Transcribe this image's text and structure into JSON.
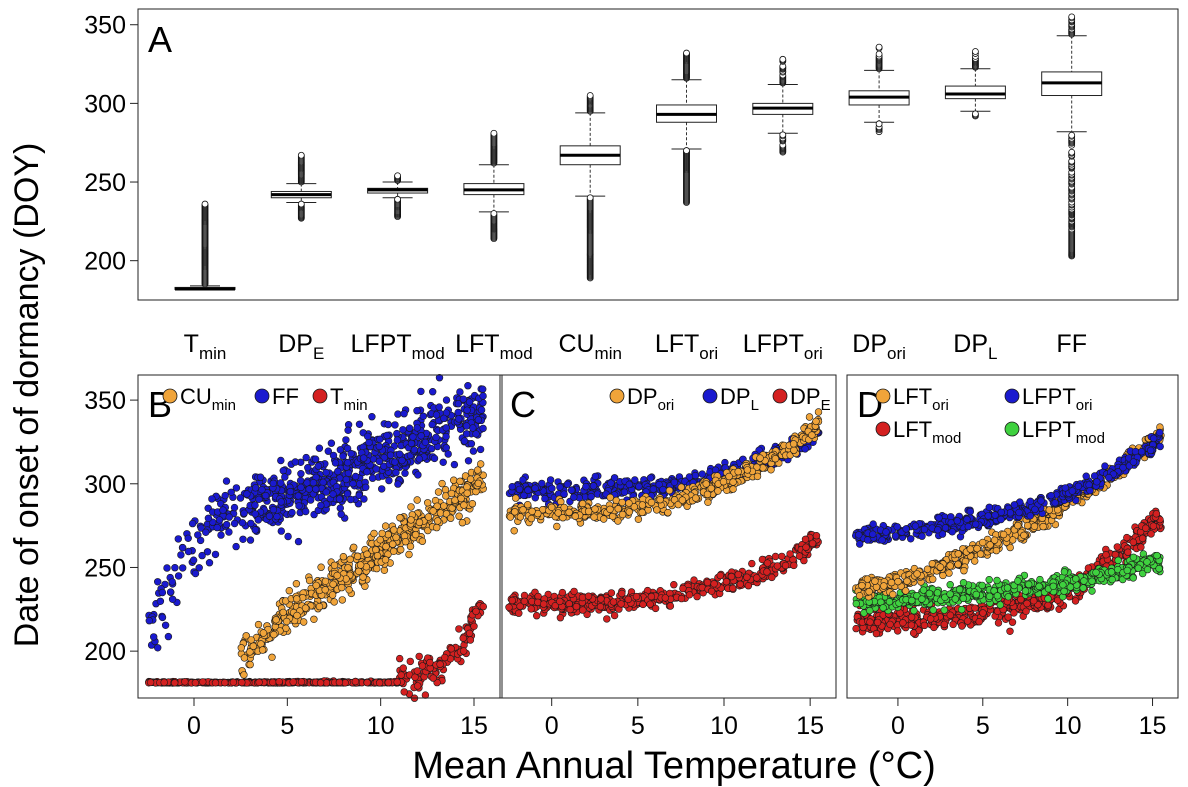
{
  "ylabel": "Date of onset of  dormancy (DOY)",
  "xlabel": "Mean Annual Temperature (°C)",
  "colors": {
    "orange": "#f0a43a",
    "blue": "#1a1acf",
    "red": "#d42020",
    "green": "#3fd13f"
  },
  "chart_data": [
    {
      "panel": "A",
      "type": "box",
      "ylim": [
        175,
        360
      ],
      "yticks": [
        200,
        250,
        300,
        350
      ],
      "categories": [
        {
          "label": "T",
          "sub": "min"
        },
        {
          "label": "DP",
          "sub": "E"
        },
        {
          "label": "LFPT",
          "sub": "mod"
        },
        {
          "label": "LFT",
          "sub": "mod"
        },
        {
          "label": "CU",
          "sub": "min"
        },
        {
          "label": "LFT",
          "sub": "ori"
        },
        {
          "label": "LFPT",
          "sub": "ori"
        },
        {
          "label": "DP",
          "sub": "ori"
        },
        {
          "label": "DP",
          "sub": "L"
        },
        {
          "label": "FF",
          "sub": ""
        }
      ],
      "boxes": [
        {
          "min": 182,
          "q1": 182,
          "median": 182,
          "q3": 183,
          "max": 184,
          "out_lo": 182,
          "out_hi": 236
        },
        {
          "min": 237,
          "q1": 240,
          "median": 242,
          "q3": 244,
          "max": 249,
          "out_lo": 227,
          "out_hi": 267
        },
        {
          "min": 240,
          "q1": 243,
          "median": 245,
          "q3": 246,
          "max": 250,
          "out_lo": 228,
          "out_hi": 254
        },
        {
          "min": 231,
          "q1": 242,
          "median": 245,
          "q3": 249,
          "max": 261,
          "out_lo": 214,
          "out_hi": 281
        },
        {
          "min": 241,
          "q1": 261,
          "median": 267,
          "q3": 273,
          "max": 294,
          "out_lo": 189,
          "out_hi": 305
        },
        {
          "min": 271,
          "q1": 288,
          "median": 293,
          "q3": 299,
          "max": 315,
          "out_lo": 237,
          "out_hi": 332
        },
        {
          "min": 281,
          "q1": 293,
          "median": 297,
          "q3": 300,
          "max": 312,
          "out_lo": 269,
          "out_hi": 328
        },
        {
          "min": 288,
          "q1": 299,
          "median": 304,
          "q3": 308,
          "max": 321,
          "out_lo": 282,
          "out_hi": 337
        },
        {
          "min": 295,
          "q1": 303,
          "median": 306,
          "q3": 311,
          "max": 322,
          "out_lo": 292,
          "out_hi": 333
        },
        {
          "min": 282,
          "q1": 305,
          "median": 313,
          "q3": 320,
          "max": 343,
          "out_lo": 203,
          "out_hi": 355
        }
      ]
    },
    {
      "panel": "B",
      "type": "scatter",
      "xlim": [
        -3,
        16.5
      ],
      "ylim": [
        172,
        365
      ],
      "xticks": [
        0,
        5,
        10,
        15
      ],
      "yticks": [
        200,
        250,
        300,
        350
      ],
      "legend": [
        {
          "label": "CU",
          "sub": "min",
          "color": "orange"
        },
        {
          "label": "FF",
          "sub": "",
          "color": "blue"
        },
        {
          "label": "T",
          "sub": "min",
          "color": "red"
        }
      ],
      "series": [
        {
          "color": "blue",
          "x_range": [
            -2.5,
            15.5
          ],
          "curve": [
            [
              -2.5,
              205
            ],
            [
              -1,
              245
            ],
            [
              0.5,
              268
            ],
            [
              2,
              282
            ],
            [
              4,
              290
            ],
            [
              6,
              298
            ],
            [
              8,
              305
            ],
            [
              10,
              315
            ],
            [
              12,
              325
            ],
            [
              14,
              335
            ],
            [
              15.5,
              343
            ]
          ],
          "spread": 10,
          "n": 750
        },
        {
          "color": "orange",
          "x_range": [
            2.5,
            15.5
          ],
          "curve": [
            [
              2.5,
              195
            ],
            [
              4,
              210
            ],
            [
              5,
              220
            ],
            [
              6.5,
              233
            ],
            [
              8,
              245
            ],
            [
              10,
              260
            ],
            [
              12,
              275
            ],
            [
              14,
              290
            ],
            [
              15.5,
              302
            ]
          ],
          "spread": 6,
          "n": 520
        },
        {
          "color": "red",
          "x_range": [
            -2.5,
            15.5
          ],
          "curve": [
            [
              -2.5,
              181
            ],
            [
              9,
              181
            ],
            [
              11,
              182
            ],
            [
              12.5,
              186
            ],
            [
              13.5,
              192
            ],
            [
              14.5,
              205
            ],
            [
              15.5,
              228
            ]
          ],
          "spread": 5,
          "n": 480
        }
      ]
    },
    {
      "panel": "C",
      "type": "scatter",
      "xlim": [
        -3,
        16.5
      ],
      "ylim": [
        172,
        365
      ],
      "xticks": [
        0,
        5,
        10,
        15
      ],
      "yticks": [
        200,
        250,
        300,
        350
      ],
      "legend": [
        {
          "label": "DP",
          "sub": "ori",
          "color": "orange"
        },
        {
          "label": "DP",
          "sub": "L",
          "color": "blue"
        },
        {
          "label": "DP",
          "sub": "E",
          "color": "red"
        }
      ],
      "series": [
        {
          "color": "blue",
          "x_range": [
            -2.5,
            15.5
          ],
          "curve": [
            [
              -2.5,
              296
            ],
            [
              0,
              296
            ],
            [
              3,
              296
            ],
            [
              6,
              298
            ],
            [
              9,
              303
            ],
            [
              12,
              312
            ],
            [
              14,
              322
            ],
            [
              15.5,
              332
            ]
          ],
          "spread": 3,
          "n": 420
        },
        {
          "color": "orange",
          "x_range": [
            -2.5,
            15.5
          ],
          "curve": [
            [
              -2.5,
              282
            ],
            [
              0,
              282
            ],
            [
              3,
              283
            ],
            [
              6,
              287
            ],
            [
              9,
              296
            ],
            [
              12,
              310
            ],
            [
              14,
              323
            ],
            [
              15.5,
              335
            ]
          ],
          "spread": 3,
          "n": 420
        },
        {
          "color": "red",
          "x_range": [
            -2.5,
            15.5
          ],
          "curve": [
            [
              -2.5,
              229
            ],
            [
              0,
              229
            ],
            [
              3,
              229
            ],
            [
              6,
              232
            ],
            [
              9,
              238
            ],
            [
              12,
              246
            ],
            [
              14,
              256
            ],
            [
              15.5,
              266
            ]
          ],
          "spread": 3,
          "n": 460
        }
      ]
    },
    {
      "panel": "D",
      "type": "scatter",
      "xlim": [
        -3,
        16.5
      ],
      "ylim": [
        172,
        365
      ],
      "xticks": [
        0,
        5,
        10,
        15
      ],
      "yticks": [
        200,
        250,
        300,
        350
      ],
      "legend": [
        {
          "label": "LFT",
          "sub": "ori",
          "color": "orange"
        },
        {
          "label": "LFPT",
          "sub": "ori",
          "color": "blue"
        },
        {
          "label": "LFT",
          "sub": "mod",
          "color": "red"
        },
        {
          "label": "LFPT",
          "sub": "mod",
          "color": "green"
        }
      ],
      "series": [
        {
          "color": "red",
          "x_range": [
            -2.5,
            15.5
          ],
          "curve": [
            [
              -2.5,
              218
            ],
            [
              0,
              219
            ],
            [
              3,
              220
            ],
            [
              6,
              224
            ],
            [
              9,
              232
            ],
            [
              11,
              242
            ],
            [
              13,
              258
            ],
            [
              15.5,
              278
            ]
          ],
          "spread": 4,
          "n": 480
        },
        {
          "color": "green",
          "x_range": [
            -2.5,
            15.5
          ],
          "curve": [
            [
              -2.5,
              230
            ],
            [
              0,
              231
            ],
            [
              3,
              233
            ],
            [
              6,
              236
            ],
            [
              9,
              240
            ],
            [
              12,
              245
            ],
            [
              15.5,
              253
            ]
          ],
          "spread": 3,
          "n": 480
        },
        {
          "color": "orange",
          "x_range": [
            -2.5,
            15.5
          ],
          "curve": [
            [
              -2.5,
              237
            ],
            [
              0,
              241
            ],
            [
              3,
              252
            ],
            [
              6,
              266
            ],
            [
              9,
              282
            ],
            [
              12,
              302
            ],
            [
              14,
              317
            ],
            [
              15.5,
              330
            ]
          ],
          "spread": 3,
          "n": 460
        },
        {
          "color": "blue",
          "x_range": [
            -2.5,
            15.5
          ],
          "curve": [
            [
              -2.5,
              268
            ],
            [
              0,
              271
            ],
            [
              3,
              275
            ],
            [
              6,
              281
            ],
            [
              9,
              290
            ],
            [
              12,
              303
            ],
            [
              14,
              315
            ],
            [
              15.5,
              327
            ]
          ],
          "spread": 2.5,
          "n": 460
        }
      ]
    }
  ]
}
